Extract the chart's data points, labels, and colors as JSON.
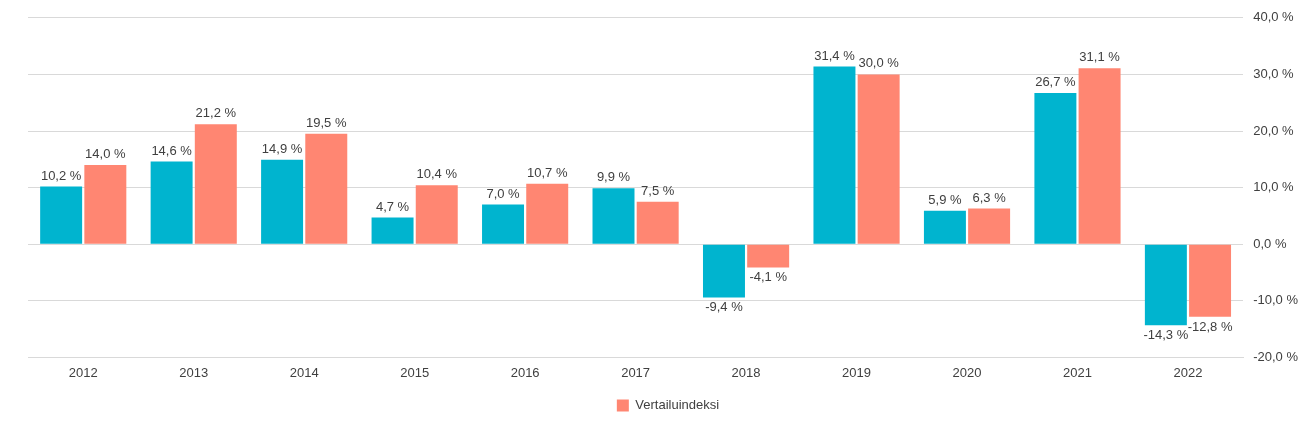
{
  "chart_data": {
    "type": "bar",
    "categories": [
      "2012",
      "2013",
      "2014",
      "2015",
      "2016",
      "2017",
      "2018",
      "2019",
      "2020",
      "2021",
      "2022"
    ],
    "series": [
      {
        "color": "#00b4cf",
        "values": [
          10.2,
          14.6,
          14.9,
          4.7,
          7.0,
          9.9,
          -9.4,
          31.4,
          5.9,
          26.7,
          -14.3
        ],
        "value_labels": [
          "10,2 %",
          "14,6 %",
          "14,9 %",
          "4,7 %",
          "7,0 %",
          "9,9 %",
          "-9,4 %",
          "31,4 %",
          "5,9 %",
          "26,7 %",
          "-14,3 %"
        ]
      },
      {
        "name": "Vertailuindeksi",
        "color": "#ff8672",
        "values": [
          14.0,
          21.2,
          19.5,
          10.4,
          10.7,
          7.5,
          -4.1,
          30.0,
          6.3,
          31.1,
          -12.8
        ],
        "value_labels": [
          "14,0 %",
          "21,2 %",
          "19,5 %",
          "10,4 %",
          "10,7 %",
          "7,5 %",
          "-4,1 %",
          "30,0 %",
          "6,3 %",
          "31,1 %",
          "-12,8 %"
        ]
      }
    ],
    "ylim": [
      -20,
      40
    ],
    "yticks": [
      {
        "value": -20,
        "label": "-20,0 %"
      },
      {
        "value": -10,
        "label": "-10,0 %"
      },
      {
        "value": 0,
        "label": "0,0 %"
      },
      {
        "value": 10,
        "label": "10,0 %"
      },
      {
        "value": 20,
        "label": "20,0 %"
      },
      {
        "value": 30,
        "label": "30,0 %"
      },
      {
        "value": 40,
        "label": "40,0 %"
      }
    ],
    "grid": "y",
    "legend": "bottom"
  }
}
